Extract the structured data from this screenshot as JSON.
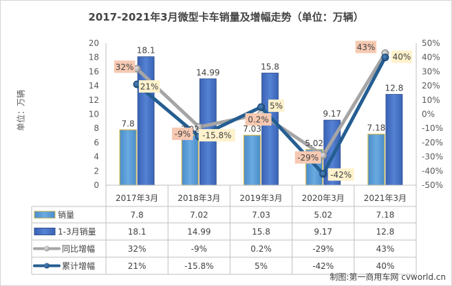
{
  "chart_data": {
    "type": "bar",
    "title": "2017-2021年3月微型卡车销量及增幅走势（单位：万辆）",
    "ylabel": "单位：万辆",
    "categories": [
      "2017年3月",
      "2018年3月",
      "2019年3月",
      "2020年3月",
      "2021年3月"
    ],
    "ylim": [
      0,
      20
    ],
    "y2lim": [
      -50,
      50
    ],
    "yticks": [
      "0",
      "2",
      "4",
      "6",
      "8",
      "10",
      "12",
      "14",
      "16",
      "18",
      "20"
    ],
    "y2ticks": [
      "-50%",
      "-40%",
      "-30%",
      "-20%",
      "-10%",
      "0%",
      "10%",
      "20%",
      "30%",
      "40%",
      "50%"
    ],
    "series": [
      {
        "name": "销量",
        "type": "bar",
        "axis": "left",
        "color": "#5b9bd5",
        "values": [
          7.8,
          7.02,
          7.03,
          5.02,
          7.18
        ],
        "labels": [
          "7.8",
          "7.02",
          "7.03",
          "5.02",
          "7.18"
        ]
      },
      {
        "name": "1-3月销量",
        "type": "bar",
        "axis": "left",
        "color": "#4472c4",
        "values": [
          18.1,
          14.99,
          15.8,
          9.17,
          12.8
        ],
        "labels": [
          "18.1",
          "14.99",
          "15.8",
          "9.17",
          "12.8"
        ]
      },
      {
        "name": "同比增幅",
        "type": "line",
        "axis": "right",
        "color": "#a5a5a5",
        "values": [
          32,
          -9,
          0.2,
          -29,
          43
        ],
        "labels": [
          "32%",
          "-9%",
          "0.2%",
          "-29%",
          "43%"
        ]
      },
      {
        "name": "累计增幅",
        "type": "line",
        "axis": "right",
        "color": "#255e91",
        "values": [
          21,
          -15.8,
          5,
          -42,
          40
        ],
        "labels": [
          "21%",
          "-15.8%",
          "5%",
          "-42%",
          "40%"
        ]
      }
    ],
    "legend": "data-table",
    "grid": false
  },
  "footer": "制图:第一商用车网 cvworld.cn"
}
